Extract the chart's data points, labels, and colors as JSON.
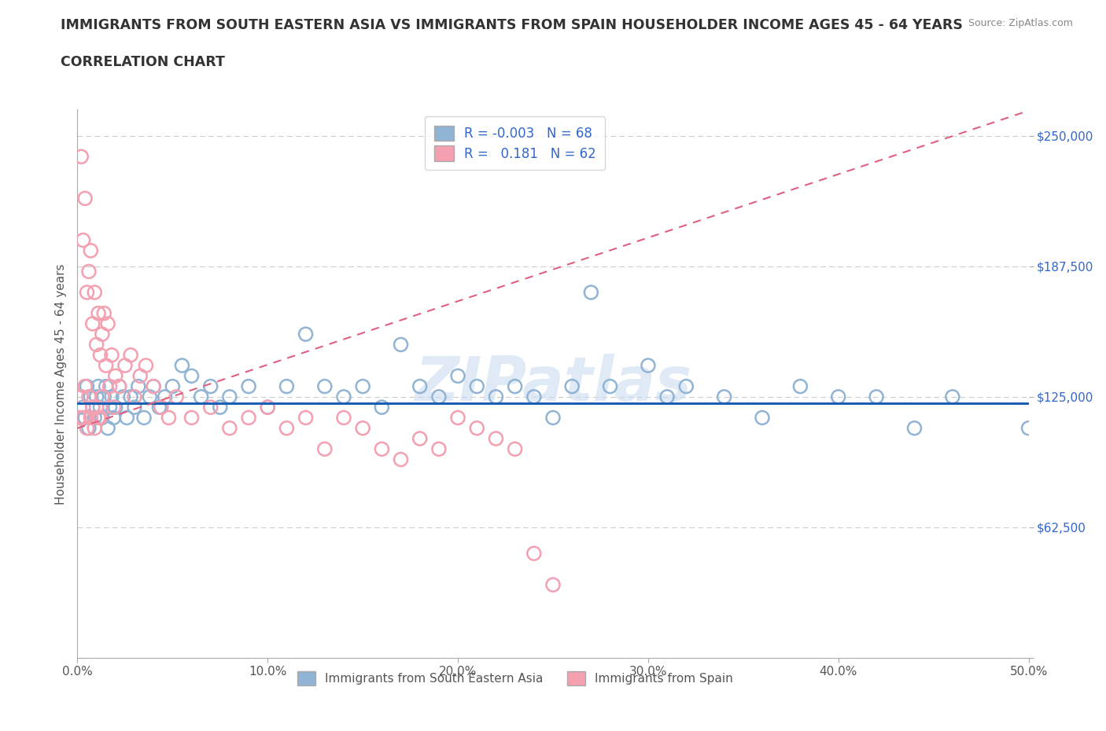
{
  "title_line1": "IMMIGRANTS FROM SOUTH EASTERN ASIA VS IMMIGRANTS FROM SPAIN HOUSEHOLDER INCOME AGES 45 - 64 YEARS",
  "title_line2": "CORRELATION CHART",
  "source": "Source: ZipAtlas.com",
  "ylabel": "Householder Income Ages 45 - 64 years",
  "xlim": [
    0,
    0.5
  ],
  "ylim": [
    0,
    262500
  ],
  "yticks": [
    0,
    62500,
    125000,
    187500,
    250000
  ],
  "ytick_labels": [
    "",
    "$62,500",
    "$125,000",
    "$187,500",
    "$250,000"
  ],
  "xticks": [
    0.0,
    0.1,
    0.2,
    0.3,
    0.4,
    0.5
  ],
  "xtick_labels": [
    "0.0%",
    "10.0%",
    "20.0%",
    "30.0%",
    "40.0%",
    "50.0%"
  ],
  "blue_R": -0.003,
  "blue_N": 68,
  "pink_R": 0.181,
  "pink_N": 62,
  "blue_color": "#92b4d4",
  "pink_color": "#f4a0b0",
  "blue_line_color": "#1a5fb4",
  "pink_line_color": "#e06080",
  "watermark": "ZIPatlas",
  "legend_label_blue": "Immigrants from South Eastern Asia",
  "legend_label_pink": "Immigrants from Spain",
  "blue_x": [
    0.002,
    0.003,
    0.004,
    0.005,
    0.006,
    0.007,
    0.008,
    0.009,
    0.01,
    0.011,
    0.012,
    0.013,
    0.014,
    0.015,
    0.016,
    0.017,
    0.018,
    0.019,
    0.02,
    0.022,
    0.024,
    0.026,
    0.028,
    0.03,
    0.032,
    0.035,
    0.038,
    0.04,
    0.043,
    0.046,
    0.05,
    0.055,
    0.06,
    0.065,
    0.07,
    0.075,
    0.08,
    0.09,
    0.1,
    0.11,
    0.12,
    0.13,
    0.14,
    0.15,
    0.16,
    0.17,
    0.18,
    0.19,
    0.2,
    0.21,
    0.22,
    0.23,
    0.24,
    0.25,
    0.26,
    0.27,
    0.28,
    0.3,
    0.31,
    0.32,
    0.34,
    0.36,
    0.38,
    0.4,
    0.42,
    0.44,
    0.46,
    0.5
  ],
  "blue_y": [
    125000,
    120000,
    115000,
    130000,
    110000,
    125000,
    120000,
    115000,
    125000,
    130000,
    120000,
    115000,
    125000,
    130000,
    110000,
    120000,
    125000,
    115000,
    120000,
    130000,
    125000,
    115000,
    125000,
    120000,
    130000,
    115000,
    125000,
    130000,
    120000,
    125000,
    130000,
    140000,
    135000,
    125000,
    130000,
    120000,
    125000,
    130000,
    120000,
    130000,
    155000,
    130000,
    125000,
    130000,
    120000,
    150000,
    130000,
    125000,
    135000,
    130000,
    125000,
    130000,
    125000,
    115000,
    130000,
    175000,
    130000,
    140000,
    125000,
    130000,
    125000,
    115000,
    130000,
    125000,
    125000,
    110000,
    125000,
    110000
  ],
  "pink_x": [
    0.001,
    0.002,
    0.002,
    0.003,
    0.003,
    0.004,
    0.004,
    0.005,
    0.005,
    0.006,
    0.006,
    0.007,
    0.007,
    0.008,
    0.008,
    0.009,
    0.009,
    0.01,
    0.01,
    0.011,
    0.011,
    0.012,
    0.012,
    0.013,
    0.013,
    0.014,
    0.015,
    0.016,
    0.017,
    0.018,
    0.019,
    0.02,
    0.022,
    0.025,
    0.028,
    0.03,
    0.033,
    0.036,
    0.04,
    0.044,
    0.048,
    0.052,
    0.06,
    0.07,
    0.08,
    0.09,
    0.1,
    0.11,
    0.12,
    0.13,
    0.14,
    0.15,
    0.16,
    0.17,
    0.18,
    0.19,
    0.2,
    0.21,
    0.22,
    0.23,
    0.24,
    0.25
  ],
  "pink_y": [
    115000,
    125000,
    240000,
    200000,
    115000,
    220000,
    130000,
    175000,
    110000,
    185000,
    125000,
    195000,
    115000,
    160000,
    120000,
    175000,
    110000,
    150000,
    120000,
    165000,
    115000,
    145000,
    115000,
    155000,
    125000,
    165000,
    140000,
    160000,
    130000,
    145000,
    120000,
    135000,
    130000,
    140000,
    145000,
    125000,
    135000,
    140000,
    130000,
    120000,
    115000,
    125000,
    115000,
    120000,
    110000,
    115000,
    120000,
    110000,
    115000,
    100000,
    115000,
    110000,
    100000,
    95000,
    105000,
    100000,
    115000,
    110000,
    105000,
    100000,
    50000,
    35000
  ],
  "pink_line_x0": 0.0,
  "pink_line_y0": 110000,
  "pink_line_x1": 0.5,
  "pink_line_y1": 262000,
  "blue_line_y": 122000
}
